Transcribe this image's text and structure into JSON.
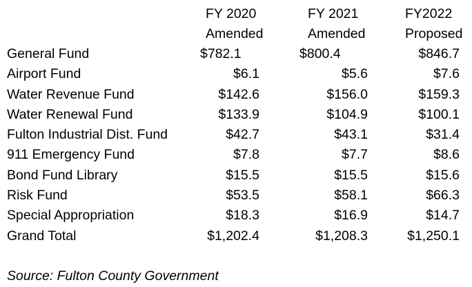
{
  "table": {
    "columns": [
      {
        "line1": "FY 2020",
        "line2": "Amended"
      },
      {
        "line1": "FY 2021",
        "line2": "Amended"
      },
      {
        "line1": "FY2022",
        "line2": "Proposed"
      }
    ],
    "rows": [
      {
        "fund": "General Fund",
        "fy2020": "$782.1",
        "fy2021": "$800.4",
        "fy2022": "$846.7"
      },
      {
        "fund": "Airport Fund",
        "fy2020": "$6.1",
        "fy2021": "$5.6",
        "fy2022": "$7.6"
      },
      {
        "fund": "Water Revenue Fund",
        "fy2020": "$142.6",
        "fy2021": "$156.0",
        "fy2022": "$159.3"
      },
      {
        "fund": "Water Renewal Fund",
        "fy2020": "$133.9",
        "fy2021": "$104.9",
        "fy2022": "$100.1"
      },
      {
        "fund": "Fulton Industrial Dist. Fund",
        "fy2020": "$42.7",
        "fy2021": "$43.1",
        "fy2022": "$31.4"
      },
      {
        "fund": "911 Emergency Fund",
        "fy2020": "$7.8",
        "fy2021": "$7.7",
        "fy2022": "$8.6"
      },
      {
        "fund": "Bond Fund Library",
        "fy2020": "$15.5",
        "fy2021": "$15.5",
        "fy2022": "$15.6"
      },
      {
        "fund": "Risk Fund",
        "fy2020": "$53.5",
        "fy2021": "$58.1",
        "fy2022": "$66.3"
      },
      {
        "fund": "Special Appropriation",
        "fy2020": "$18.3",
        "fy2021": "$16.9",
        "fy2022": "$14.7"
      },
      {
        "fund": "Grand Total",
        "fy2020": "$1,202.4",
        "fy2021": "$1,208.3",
        "fy2022": "$1,250.1"
      }
    ]
  },
  "source": "Source: Fulton County Government"
}
